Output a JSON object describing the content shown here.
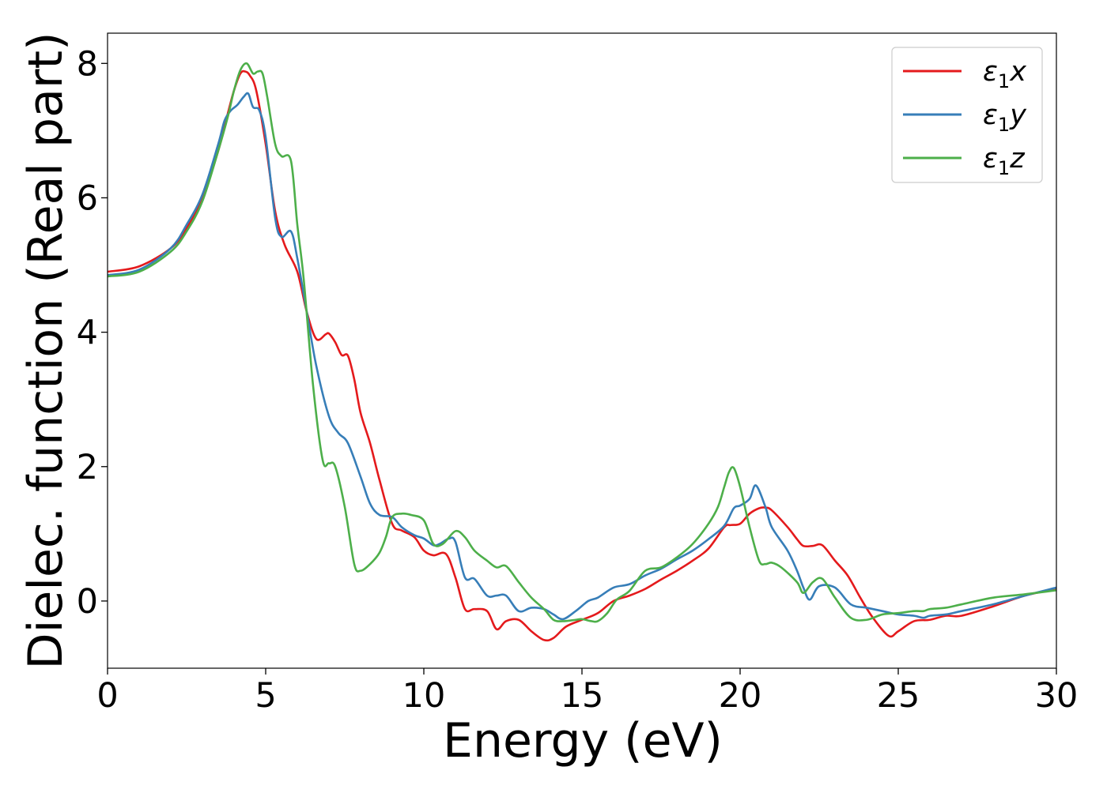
{
  "chart_data": {
    "type": "line",
    "title": "",
    "xlabel": "Energy (eV)",
    "ylabel": "Dielec. function (Real part)",
    "xlim": [
      0,
      30
    ],
    "ylim": [
      -1.0,
      8.45
    ],
    "xticks": [
      0,
      5,
      10,
      15,
      20,
      25,
      30
    ],
    "yticks": [
      0,
      2,
      4,
      6,
      8
    ],
    "grid": false,
    "legend_position": "top-right",
    "series": [
      {
        "name": "ε₁x",
        "legend_base": "ε",
        "legend_sub": "1",
        "legend_var": "x",
        "color": "#e41a1c",
        "x": [
          0,
          1,
          2,
          2.5,
          3,
          3.5,
          3.8,
          4.0,
          4.2,
          4.35,
          4.5,
          4.7,
          5.0,
          5.3,
          5.6,
          6.0,
          6.3,
          6.6,
          6.9,
          7.0,
          7.2,
          7.4,
          7.6,
          7.8,
          8.0,
          8.3,
          8.6,
          9.0,
          9.3,
          9.7,
          10.0,
          10.3,
          10.7,
          11.0,
          11.3,
          11.6,
          12.0,
          12.3,
          12.6,
          13.0,
          13.4,
          13.8,
          14.1,
          14.5,
          15.0,
          15.5,
          16.0,
          16.5,
          17.0,
          17.5,
          18.0,
          18.5,
          19.0,
          19.5,
          19.7,
          20.0,
          20.3,
          20.6,
          20.8,
          21.0,
          21.5,
          21.8,
          22.0,
          22.3,
          22.6,
          23.0,
          23.4,
          23.8,
          24.2,
          24.7,
          25.0,
          25.5,
          26.0,
          26.5,
          27.0,
          28.0,
          29.0,
          30.0
        ],
        "y": [
          4.9,
          4.98,
          5.25,
          5.55,
          6.0,
          6.7,
          7.25,
          7.6,
          7.85,
          7.88,
          7.82,
          7.6,
          6.8,
          5.8,
          5.3,
          4.9,
          4.3,
          3.9,
          3.97,
          3.98,
          3.85,
          3.66,
          3.65,
          3.3,
          2.8,
          2.35,
          1.8,
          1.15,
          1.05,
          0.95,
          0.75,
          0.68,
          0.7,
          0.35,
          -0.12,
          -0.12,
          -0.15,
          -0.42,
          -0.3,
          -0.28,
          -0.45,
          -0.58,
          -0.55,
          -0.38,
          -0.28,
          -0.18,
          0.0,
          0.08,
          0.18,
          0.32,
          0.45,
          0.6,
          0.78,
          1.1,
          1.13,
          1.15,
          1.3,
          1.38,
          1.39,
          1.35,
          1.1,
          0.92,
          0.82,
          0.82,
          0.83,
          0.6,
          0.38,
          0.05,
          -0.25,
          -0.52,
          -0.45,
          -0.3,
          -0.28,
          -0.22,
          -0.22,
          -0.08,
          0.08,
          0.18
        ]
      },
      {
        "name": "ε₁y",
        "legend_base": "ε",
        "legend_sub": "1",
        "legend_var": "y",
        "color": "#377eb8",
        "x": [
          0,
          1,
          2,
          2.5,
          3,
          3.5,
          3.7,
          3.9,
          4.1,
          4.3,
          4.45,
          4.6,
          4.8,
          5.0,
          5.3,
          5.5,
          5.8,
          6.0,
          6.3,
          6.6,
          7.0,
          7.3,
          7.6,
          8.0,
          8.3,
          8.6,
          9.0,
          9.3,
          9.7,
          10.0,
          10.3,
          10.5,
          10.8,
          11.0,
          11.3,
          11.6,
          12.0,
          12.3,
          12.6,
          13.0,
          13.4,
          13.8,
          14.1,
          14.4,
          14.8,
          15.2,
          15.5,
          16.0,
          16.5,
          17.0,
          17.5,
          18.0,
          18.5,
          19.0,
          19.5,
          19.8,
          20.0,
          20.3,
          20.5,
          20.8,
          21.0,
          21.5,
          21.8,
          22.0,
          22.2,
          22.5,
          23.0,
          23.5,
          24.0,
          24.5,
          25.0,
          25.5,
          25.8,
          26.0,
          26.5,
          27.0,
          28.0,
          29.0,
          30.0
        ],
        "y": [
          4.85,
          4.93,
          5.25,
          5.6,
          6.05,
          6.8,
          7.15,
          7.3,
          7.38,
          7.5,
          7.55,
          7.35,
          7.3,
          6.9,
          5.7,
          5.42,
          5.5,
          5.1,
          4.3,
          3.5,
          2.75,
          2.5,
          2.35,
          1.85,
          1.45,
          1.28,
          1.25,
          1.1,
          0.98,
          0.93,
          0.83,
          0.85,
          0.93,
          0.88,
          0.35,
          0.33,
          0.08,
          0.08,
          0.08,
          -0.15,
          -0.1,
          -0.12,
          -0.2,
          -0.27,
          -0.15,
          0.0,
          0.05,
          0.2,
          0.25,
          0.38,
          0.48,
          0.62,
          0.75,
          0.92,
          1.12,
          1.38,
          1.42,
          1.52,
          1.72,
          1.4,
          1.1,
          0.75,
          0.45,
          0.2,
          0.02,
          0.22,
          0.2,
          -0.05,
          -0.1,
          -0.15,
          -0.2,
          -0.22,
          -0.25,
          -0.22,
          -0.2,
          -0.15,
          -0.05,
          0.08,
          0.2
        ]
      },
      {
        "name": "ε₁z",
        "legend_base": "ε",
        "legend_sub": "1",
        "legend_var": "z",
        "color": "#4daf4a",
        "x": [
          0,
          1,
          2,
          2.5,
          3,
          3.5,
          3.8,
          4.0,
          4.2,
          4.4,
          4.6,
          4.75,
          4.9,
          5.05,
          5.3,
          5.5,
          5.8,
          6.0,
          6.2,
          6.5,
          6.8,
          7.0,
          7.2,
          7.5,
          7.8,
          8.0,
          8.3,
          8.6,
          8.8,
          9.0,
          9.3,
          9.6,
          10.0,
          10.3,
          10.6,
          11.0,
          11.3,
          11.6,
          12.0,
          12.3,
          12.6,
          13.0,
          13.4,
          13.8,
          14.1,
          14.4,
          14.8,
          15.0,
          15.3,
          15.5,
          15.8,
          16.1,
          16.5,
          17.0,
          17.5,
          18.0,
          18.5,
          19.0,
          19.3,
          19.5,
          19.65,
          19.8,
          20.0,
          20.3,
          20.6,
          20.8,
          21.0,
          21.3,
          21.8,
          22.0,
          22.3,
          22.6,
          23.0,
          23.5,
          24.0,
          24.5,
          25.0,
          25.5,
          25.8,
          26.0,
          26.5,
          27.0,
          28.0,
          29.0,
          30.0
        ],
        "y": [
          4.83,
          4.9,
          5.2,
          5.5,
          5.95,
          6.7,
          7.2,
          7.6,
          7.9,
          8.0,
          7.85,
          7.88,
          7.85,
          7.5,
          6.8,
          6.62,
          6.55,
          5.6,
          4.8,
          3.2,
          2.1,
          2.05,
          2.0,
          1.4,
          0.55,
          0.45,
          0.55,
          0.72,
          0.95,
          1.25,
          1.3,
          1.28,
          1.2,
          0.85,
          0.85,
          1.04,
          0.95,
          0.75,
          0.6,
          0.5,
          0.52,
          0.28,
          0.05,
          -0.12,
          -0.28,
          -0.3,
          -0.28,
          -0.27,
          -0.3,
          -0.3,
          -0.18,
          0.02,
          0.15,
          0.45,
          0.5,
          0.65,
          0.85,
          1.15,
          1.4,
          1.7,
          1.92,
          1.98,
          1.7,
          1.1,
          0.6,
          0.55,
          0.57,
          0.5,
          0.28,
          0.12,
          0.28,
          0.33,
          0.05,
          -0.25,
          -0.28,
          -0.2,
          -0.18,
          -0.15,
          -0.15,
          -0.12,
          -0.1,
          -0.05,
          0.05,
          0.1,
          0.16
        ]
      }
    ]
  }
}
